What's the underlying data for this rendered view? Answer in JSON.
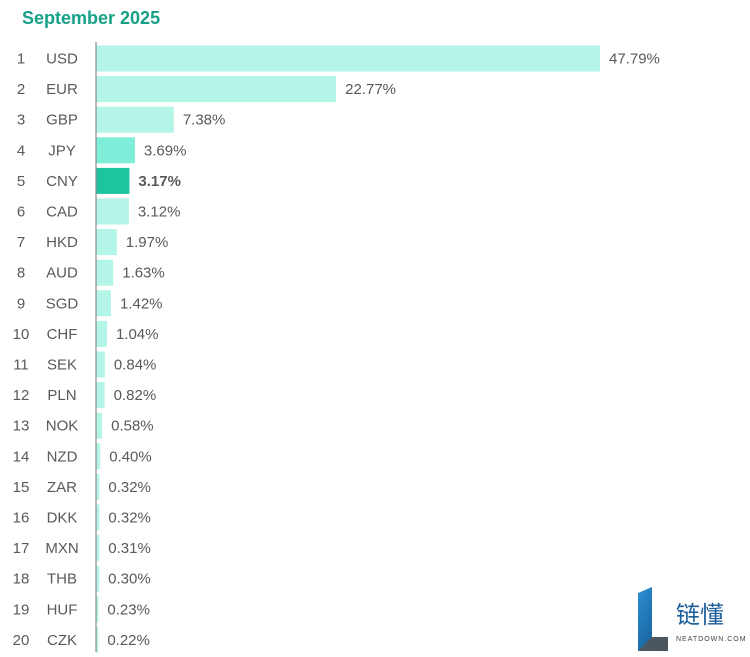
{
  "chart_data": {
    "type": "bar",
    "orientation": "horizontal",
    "title": "September 2025",
    "ranks": [
      1,
      2,
      3,
      4,
      5,
      6,
      7,
      8,
      9,
      10,
      11,
      12,
      13,
      14,
      15,
      16,
      17,
      18,
      19,
      20
    ],
    "categories": [
      "USD",
      "EUR",
      "GBP",
      "JPY",
      "CNY",
      "CAD",
      "HKD",
      "AUD",
      "SGD",
      "CHF",
      "SEK",
      "PLN",
      "NOK",
      "NZD",
      "ZAR",
      "DKK",
      "MXN",
      "THB",
      "HUF",
      "CZK"
    ],
    "values": [
      47.79,
      22.77,
      7.38,
      3.69,
      3.17,
      3.12,
      1.97,
      1.63,
      1.42,
      1.04,
      0.84,
      0.82,
      0.58,
      0.4,
      0.32,
      0.32,
      0.31,
      0.3,
      0.23,
      0.22
    ],
    "value_labels": [
      "47.79%",
      "22.77%",
      "7.38%",
      "3.69%",
      "3.17%",
      "3.12%",
      "1.97%",
      "1.63%",
      "1.42%",
      "1.04%",
      "0.84%",
      "0.82%",
      "0.58%",
      "0.40%",
      "0.32%",
      "0.32%",
      "0.31%",
      "0.30%",
      "0.23%",
      "0.22%"
    ],
    "highlight": "CNY",
    "unit": "%",
    "xlim": [
      0,
      47.79
    ],
    "grid": false,
    "colors": {
      "bar": "#b3f5e6",
      "jpy_bar": "#7eeed8",
      "highlight_bar": "#1dc49d",
      "axis": "#8a8a8a",
      "title": "#16a085",
      "text": "#595959"
    }
  },
  "watermark": {
    "brand_text": "链懂",
    "domain_text": "NEATDOWN.COM"
  }
}
